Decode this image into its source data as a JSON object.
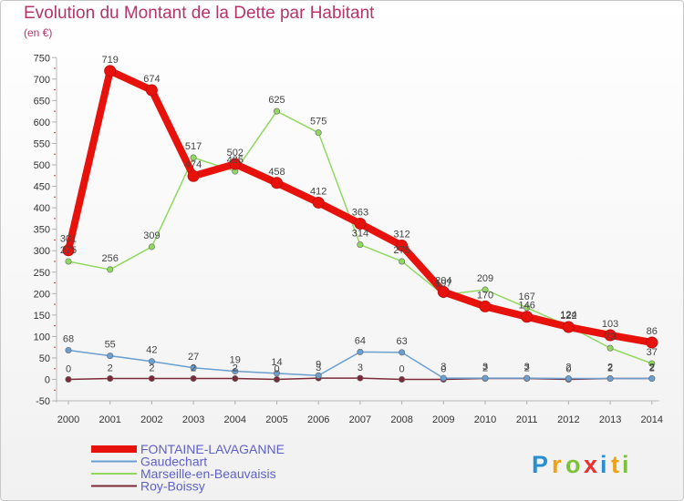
{
  "chart_data": {
    "type": "line",
    "title": "Evolution du Montant de la Dette par Habitant",
    "subtitle": "(en €)",
    "x": [
      "2000",
      "2001",
      "2002",
      "2003",
      "2004",
      "2005",
      "2006",
      "2007",
      "2008",
      "2009",
      "2010",
      "2011",
      "2012",
      "2013",
      "2014"
    ],
    "ylim": [
      -50,
      750
    ],
    "yticks": [
      -50,
      0,
      50,
      100,
      150,
      200,
      250,
      300,
      350,
      400,
      450,
      500,
      550,
      600,
      650,
      700,
      750
    ],
    "grid": false,
    "legend_position": "bottom-left",
    "series": [
      {
        "name": "FONTAINE-LAVAGANNE",
        "color": "#e8120c",
        "values": [
          301,
          719,
          674,
          474,
          502,
          458,
          412,
          363,
          312,
          204,
          170,
          146,
          122,
          103,
          86
        ]
      },
      {
        "name": "Gaudechart",
        "color": "#6a9fd0",
        "values": [
          68,
          55,
          42,
          27,
          19,
          14,
          9,
          64,
          63,
          3,
          3,
          3,
          2,
          2,
          2
        ]
      },
      {
        "name": "Marseille-en-Beauvaisis",
        "color": "#90d860",
        "values": [
          275,
          256,
          309,
          517,
          485,
          625,
          575,
          314,
          275,
          197,
          209,
          167,
          124,
          73,
          37
        ]
      },
      {
        "name": "Roy-Boissy",
        "color": "#7a2a38",
        "values": [
          0,
          2,
          2,
          2,
          2,
          0,
          3,
          3,
          0,
          0,
          2,
          2,
          0,
          2,
          2
        ]
      }
    ]
  },
  "brand": {
    "letters": [
      "P",
      "r",
      "o",
      "x",
      "i",
      "t",
      "i"
    ],
    "colors": [
      "#2a8fd0",
      "#f0a010",
      "#7bc23a",
      "#e83030",
      "#2a8fd0",
      "#f0a010",
      "#7bc23a"
    ]
  }
}
